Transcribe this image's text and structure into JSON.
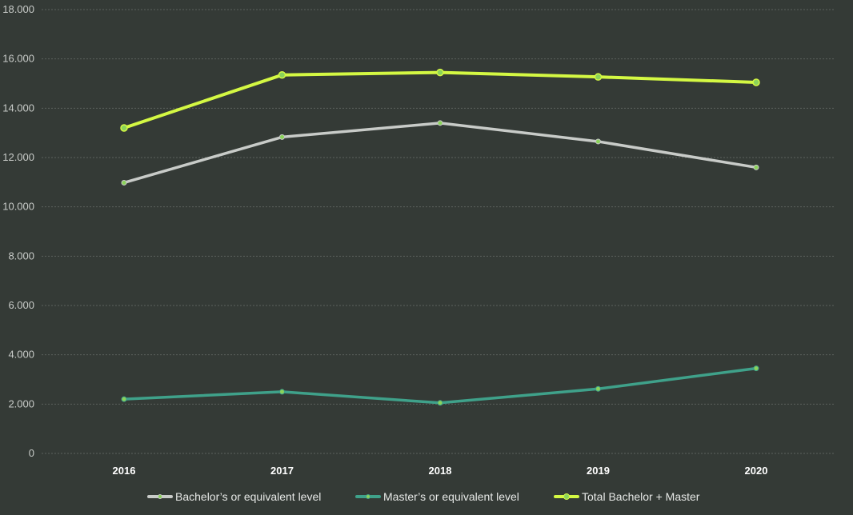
{
  "chart_data": {
    "type": "line",
    "title": "",
    "xlabel": "",
    "ylabel": "",
    "categories": [
      "2016",
      "2017",
      "2018",
      "2019",
      "2020"
    ],
    "ylim": [
      0,
      18000
    ],
    "yticks": [
      0,
      2000,
      4000,
      6000,
      8000,
      10000,
      12000,
      14000,
      16000,
      18000
    ],
    "ytick_labels": [
      "0",
      "2.000",
      "4.000",
      "6.000",
      "8.000",
      "10.000",
      "12.000",
      "14.000",
      "16.000",
      "18.000"
    ],
    "grid": true,
    "legend_position": "bottom",
    "series": [
      {
        "name": "Bachelor’s or equivalent level",
        "color": "#c8cbc8",
        "values": [
          10980,
          12830,
          13400,
          12650,
          11600
        ]
      },
      {
        "name": "Master’s or equivalent level",
        "color": "#3fa18a",
        "values": [
          2200,
          2500,
          2050,
          2620,
          3450
        ]
      },
      {
        "name": "Total Bachelor + Master",
        "color": "#d4f843",
        "values": [
          13200,
          15350,
          15450,
          15270,
          15050
        ]
      }
    ],
    "marker_fill": "#8bd35a"
  }
}
